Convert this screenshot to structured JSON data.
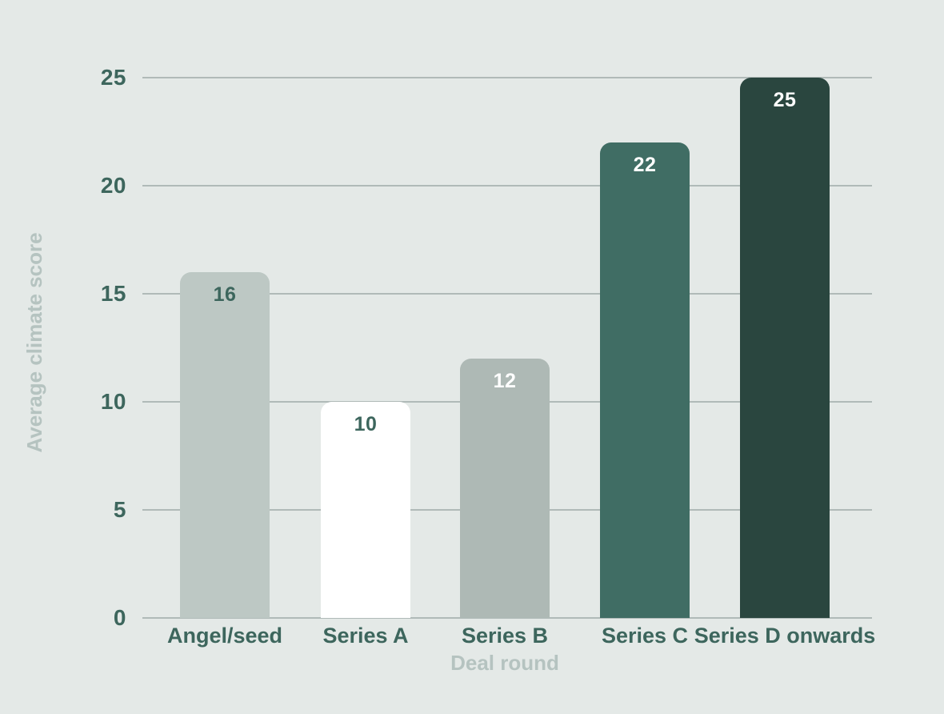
{
  "chart_data": {
    "type": "bar",
    "categories": [
      "Angel/seed",
      "Series A",
      "Series B",
      "Series C",
      "Series D onwards"
    ],
    "values": [
      16,
      10,
      12,
      22,
      25
    ],
    "xlabel": "Deal round",
    "ylabel": "Average climate score",
    "ylim": [
      0,
      25
    ],
    "yticks": [
      0,
      5,
      10,
      15,
      20,
      25
    ],
    "grid": true,
    "legend_position": "none",
    "bar_colors": [
      "#bdc8c4",
      "#ffffff",
      "#aeb9b5",
      "#406d64",
      "#2a463f"
    ],
    "value_label_colors": [
      "#3d665d",
      "#3d665d",
      "#ffffff",
      "#ffffff",
      "#ffffff"
    ],
    "colors": {
      "background": "#e4e9e7",
      "gridline": "#b0bab8",
      "tick_label": "#3d665d",
      "category_label": "#3d665d",
      "axis_title": "#b5c3c0"
    }
  }
}
